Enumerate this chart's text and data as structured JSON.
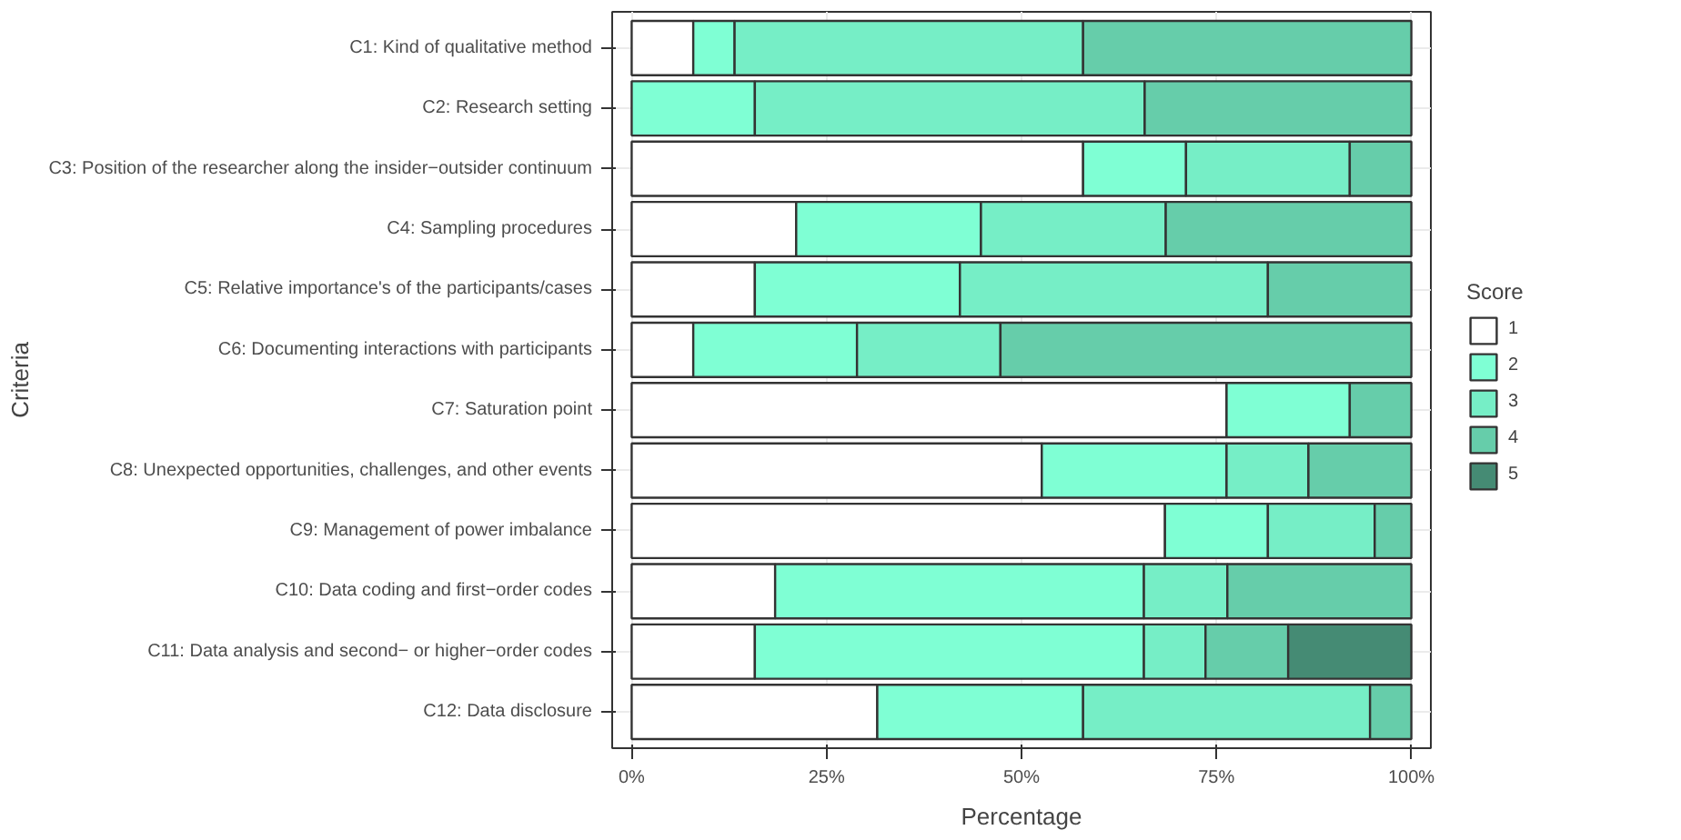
{
  "chart_data": {
    "type": "bar",
    "orientation": "horizontal",
    "stacked": true,
    "xlabel": "Percentage",
    "ylabel": "Criteria",
    "legend_title": "Score",
    "legend": "right",
    "grid": true,
    "categories": [
      "C1: Kind of qualitative method",
      "C2: Research setting",
      "C3: Position of the researcher along the insider−outsider continuum",
      "C4: Sampling procedures",
      "C5: Relative importance's of the participants/cases",
      "C6: Documenting interactions with participants",
      "C7: Saturation point",
      "C8: Unexpected opportunities, challenges, and other events",
      "C9: Management of power imbalance",
      "C10: Data coding and first−order codes",
      "C11: Data analysis and second− or higher−order codes",
      "C12: Data disclosure"
    ],
    "xlim": [
      -2.5,
      102.5
    ],
    "xticks": [
      {
        "value": 0,
        "label": "0%"
      },
      {
        "value": 25,
        "label": "25%"
      },
      {
        "value": 50,
        "label": "50%"
      },
      {
        "value": 75,
        "label": "75%"
      },
      {
        "value": 100,
        "label": "100%"
      }
    ],
    "series": [
      {
        "name": "1",
        "color": "#ffffff",
        "values": [
          7.9,
          null,
          57.9,
          21.1,
          15.8,
          7.9,
          76.3,
          52.6,
          68.4,
          18.4,
          15.8,
          31.5
        ]
      },
      {
        "name": "2",
        "color": "#7fffd4",
        "values": [
          5.3,
          15.8,
          13.2,
          23.7,
          26.3,
          21.0,
          15.8,
          23.7,
          13.2,
          47.3,
          49.9,
          26.4
        ]
      },
      {
        "name": "3",
        "color": "#76eec6",
        "values": [
          44.7,
          50.0,
          21.0,
          23.7,
          39.5,
          18.4,
          null,
          10.5,
          13.7,
          10.7,
          7.9,
          36.8
        ]
      },
      {
        "name": "4",
        "color": "#66cdaa",
        "values": [
          42.1,
          34.2,
          7.9,
          31.5,
          18.4,
          52.7,
          7.9,
          13.2,
          4.7,
          23.6,
          10.6,
          5.3
        ]
      },
      {
        "name": "5",
        "color": "#458b74",
        "values": [
          null,
          null,
          null,
          null,
          null,
          null,
          null,
          null,
          null,
          null,
          15.8,
          null
        ]
      }
    ]
  }
}
